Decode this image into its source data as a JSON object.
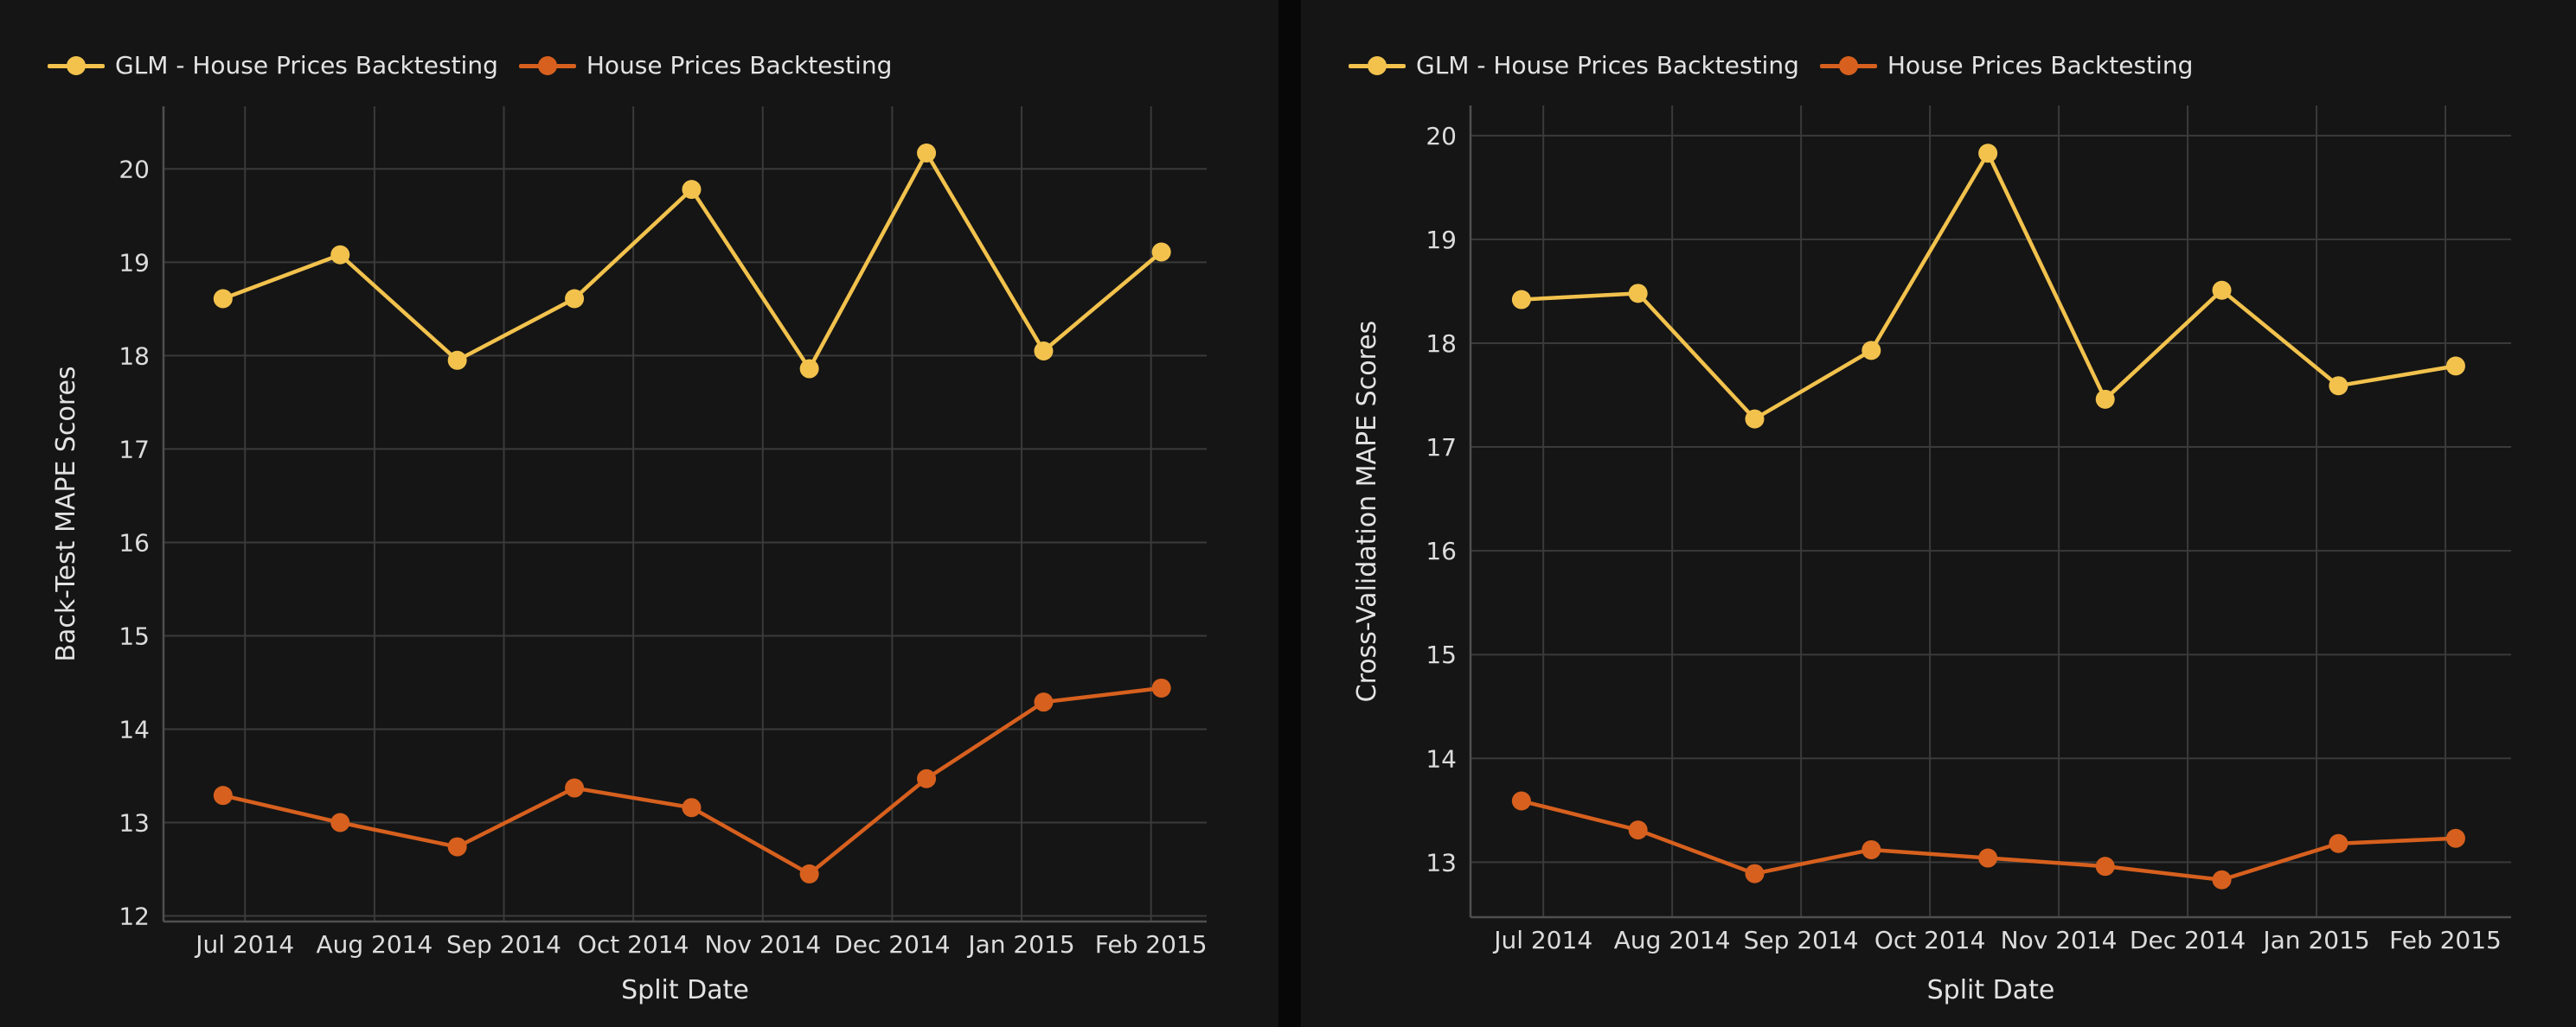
{
  "theme": {
    "page_background": "#070707",
    "panel_background": "#151515",
    "grid_color": "#3a3a3a",
    "spine_color": "#4f4f4f",
    "tick_text_color": "#dcdcdc",
    "label_text_color": "#e3e3e3",
    "glm_color": "#f2c24d",
    "actual_color": "#d7601e"
  },
  "chart_data": [
    {
      "type": "line",
      "title": "",
      "xlabel": "Split Date",
      "ylabel": "Back-Test MAPE Scores",
      "x_tick_labels": [
        "Jul 2014",
        "Aug 2014",
        "Sep 2014",
        "Oct 2014",
        "Nov 2014",
        "Dec 2014",
        "Jan 2015",
        "Feb 2015"
      ],
      "y_ticks": [
        12,
        13,
        14,
        15,
        16,
        17,
        18,
        19,
        20
      ],
      "ylim": [
        11.94,
        20.67
      ],
      "xlim_month_units": [
        -0.63,
        7.43
      ],
      "grid": true,
      "legend_position": "top-left",
      "marker": "circle",
      "x_month_units": [
        -0.17,
        0.735,
        1.64,
        2.545,
        3.45,
        4.36,
        5.265,
        6.17,
        7.08
      ],
      "series": [
        {
          "name": "GLM - House Prices Backtesting",
          "color": "#f2c24d",
          "values": [
            18.61,
            19.08,
            17.95,
            18.61,
            19.78,
            17.86,
            20.17,
            18.05,
            19.11
          ]
        },
        {
          "name": "House Prices Backtesting",
          "color": "#d7601e",
          "values": [
            13.29,
            13.0,
            12.74,
            13.37,
            13.16,
            12.45,
            13.47,
            14.29,
            14.44
          ]
        }
      ]
    },
    {
      "type": "line",
      "title": "",
      "xlabel": "Split Date",
      "ylabel": "Cross-Validation MAPE Scores",
      "x_tick_labels": [
        "Jul 2014",
        "Aug 2014",
        "Sep 2014",
        "Oct 2014",
        "Nov 2014",
        "Dec 2014",
        "Jan 2015",
        "Feb 2015"
      ],
      "y_ticks": [
        13,
        14,
        15,
        16,
        17,
        18,
        19,
        20
      ],
      "ylim": [
        12.47,
        20.29
      ],
      "xlim_month_units": [
        -0.565,
        7.51
      ],
      "grid": true,
      "legend_position": "top-left",
      "marker": "circle",
      "x_month_units": [
        -0.17,
        0.735,
        1.64,
        2.545,
        3.45,
        4.36,
        5.265,
        6.17,
        7.08
      ],
      "series": [
        {
          "name": "GLM - House Prices Backtesting",
          "color": "#f2c24d",
          "values": [
            18.42,
            18.48,
            17.27,
            17.93,
            19.83,
            17.46,
            18.51,
            17.59,
            17.78
          ]
        },
        {
          "name": "House Prices Backtesting",
          "color": "#d7601e",
          "values": [
            13.59,
            13.31,
            12.89,
            13.12,
            13.04,
            12.96,
            12.83,
            13.18,
            13.23
          ]
        }
      ]
    }
  ]
}
